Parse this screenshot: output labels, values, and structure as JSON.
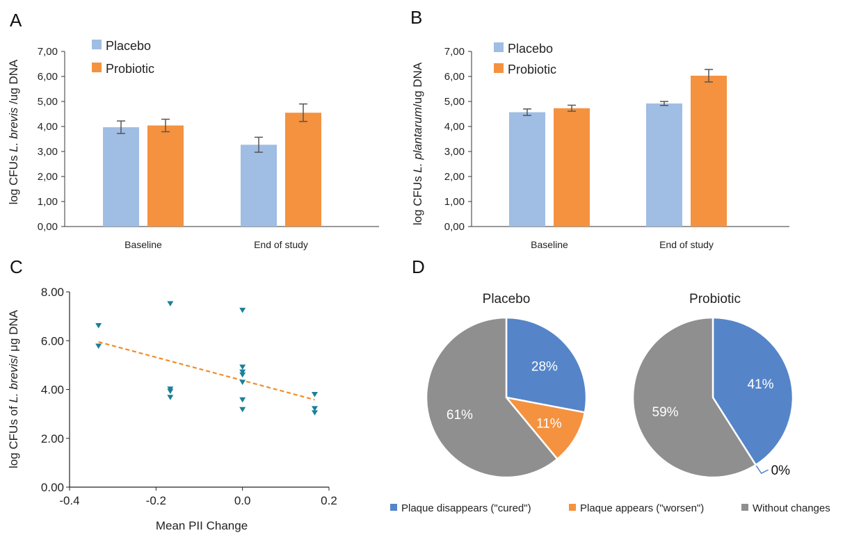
{
  "panels": {
    "a": "A",
    "b": "B",
    "c": "C",
    "d": "D"
  },
  "colors": {
    "placebo": "#a0bde3",
    "probiotic": "#f49240",
    "scatter": "#1a8096",
    "trend": "#f28c28",
    "cured": "#5585c8",
    "worsen": "#f49240",
    "nochange": "#8f8f8f"
  },
  "chart_data": [
    {
      "type": "bar",
      "panel": "A",
      "categories": [
        "Baseline",
        "End of study"
      ],
      "ytick_labels": [
        "0,00",
        "1,00",
        "2,00",
        "3,00",
        "4,00",
        "5,00",
        "6,00",
        "7,00"
      ],
      "ylim": [
        0,
        7
      ],
      "ylabel_pre": "log CFUs ",
      "ylabel_italic": "L. brevis",
      "ylabel_post": " /ug DNA",
      "legend": [
        "Placebo",
        "Probiotic"
      ],
      "series": [
        {
          "name": "Placebo",
          "values": [
            3.97,
            3.27
          ],
          "errors": [
            0.25,
            0.3
          ]
        },
        {
          "name": "Probiotic",
          "values": [
            4.04,
            4.55
          ],
          "errors": [
            0.25,
            0.35
          ]
        }
      ]
    },
    {
      "type": "bar",
      "panel": "B",
      "categories": [
        "Baseline",
        "End of study"
      ],
      "ytick_labels": [
        "0,00",
        "1,00",
        "2,00",
        "3,00",
        "4,00",
        "5,00",
        "6,00",
        "7,00"
      ],
      "ylim": [
        0,
        7
      ],
      "ylabel_pre": "log CFUs ",
      "ylabel_italic": "L. plantarum",
      "ylabel_post": "/ug DNA",
      "legend": [
        "Placebo",
        "Probiotic"
      ],
      "series": [
        {
          "name": "Placebo",
          "values": [
            4.57,
            4.92
          ],
          "errors": [
            0.13,
            0.08
          ]
        },
        {
          "name": "Probiotic",
          "values": [
            4.73,
            6.03
          ],
          "errors": [
            0.12,
            0.25
          ]
        }
      ]
    },
    {
      "type": "scatter",
      "panel": "C",
      "xlabel": "Mean PII Change",
      "ylabel_pre": "log CFUs of ",
      "ylabel_italic": "L. brevis",
      "ylabel_post": "/ μg DNA",
      "xtick_labels": [
        "-0.4",
        "-0.2",
        "0.0",
        "0.2"
      ],
      "ytick_labels": [
        "0.00",
        "2.00",
        "4.00",
        "6.00",
        "8.00"
      ],
      "xlim": [
        -0.4,
        0.2
      ],
      "ylim": [
        0,
        8
      ],
      "points": [
        [
          -0.333,
          6.62
        ],
        [
          -0.333,
          5.78
        ],
        [
          -0.167,
          7.52
        ],
        [
          -0.167,
          4.02
        ],
        [
          -0.167,
          3.93
        ],
        [
          -0.167,
          3.68
        ],
        [
          0.0,
          7.25
        ],
        [
          0.0,
          4.92
        ],
        [
          0.0,
          4.72
        ],
        [
          0.0,
          4.6
        ],
        [
          0.0,
          4.3
        ],
        [
          0.0,
          3.58
        ],
        [
          0.0,
          3.18
        ],
        [
          0.167,
          3.8
        ],
        [
          0.167,
          3.22
        ],
        [
          0.167,
          3.05
        ]
      ],
      "trendline": [
        [
          -0.333,
          5.95
        ],
        [
          0.167,
          3.58
        ]
      ]
    },
    {
      "type": "pie",
      "panel": "D",
      "pies": [
        {
          "title": "Placebo",
          "slices": [
            {
              "label": "28%",
              "value": 28
            },
            {
              "label": "11%",
              "value": 11
            },
            {
              "label": "61%",
              "value": 61
            }
          ]
        },
        {
          "title": "Probiotic",
          "slices": [
            {
              "label": "41%",
              "value": 41
            },
            {
              "label": "0%",
              "value": 0
            },
            {
              "label": "59%",
              "value": 59
            }
          ]
        }
      ],
      "legend": [
        "Plaque disappears (\"cured\")",
        "Plaque appears (\"worsen\")",
        "Without changes"
      ]
    }
  ]
}
